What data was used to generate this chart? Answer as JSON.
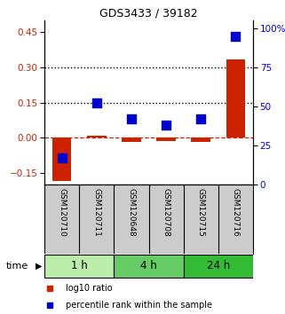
{
  "title": "GDS3433 / 39182",
  "samples": [
    "GSM120710",
    "GSM120711",
    "GSM120648",
    "GSM120708",
    "GSM120715",
    "GSM120716"
  ],
  "log10_ratio": [
    -0.185,
    0.01,
    -0.02,
    -0.015,
    -0.02,
    0.335
  ],
  "percentile_rank": [
    17,
    52,
    42,
    38,
    42,
    95
  ],
  "groups": [
    {
      "label": "1 h",
      "indices": [
        0,
        1
      ],
      "color": "#bbeeaa"
    },
    {
      "label": "4 h",
      "indices": [
        2,
        3
      ],
      "color": "#66cc66"
    },
    {
      "label": "24 h",
      "indices": [
        4,
        5
      ],
      "color": "#33bb33"
    }
  ],
  "left_ylim": [
    -0.2,
    0.5
  ],
  "right_ylim": [
    0,
    105
  ],
  "left_yticks": [
    -0.15,
    0.0,
    0.15,
    0.3,
    0.45
  ],
  "right_yticks": [
    0,
    25,
    50,
    75,
    100
  ],
  "right_yticklabels": [
    "0",
    "25",
    "50",
    "75",
    "100%"
  ],
  "hlines": [
    0.15,
    0.3
  ],
  "bar_color": "#cc2200",
  "dot_color": "#0000cc",
  "bar_width": 0.55,
  "dot_size": 55,
  "fig_width": 3.21,
  "fig_height": 3.54,
  "dpi": 100,
  "legend_ratio_label": "log10 ratio",
  "legend_pct_label": "percentile rank within the sample",
  "label_area_bg": "#cccccc",
  "plot_area_bg": "#ffffff"
}
